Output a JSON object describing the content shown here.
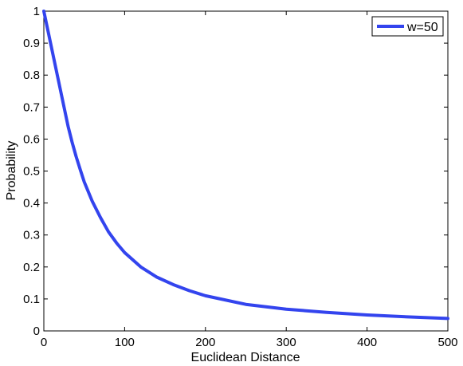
{
  "chart_data": {
    "type": "line",
    "title": "",
    "xlabel": "Euclidean Distance",
    "ylabel": "Probability",
    "xlim": [
      0,
      500
    ],
    "ylim": [
      0,
      1
    ],
    "xticks": [
      "0",
      "100",
      "200",
      "300",
      "400",
      "500"
    ],
    "yticks": [
      "0",
      "0.1",
      "0.2",
      "0.3",
      "0.4",
      "0.5",
      "0.6",
      "0.7",
      "0.8",
      "0.9",
      "1"
    ],
    "grid": false,
    "legend": "top-right",
    "series": [
      {
        "name": "w=50",
        "color": "#3344ee",
        "x": [
          0,
          5,
          10,
          15,
          20,
          25,
          30,
          35,
          40,
          45,
          50,
          60,
          70,
          80,
          90,
          100,
          120,
          140,
          160,
          180,
          200,
          250,
          300,
          350,
          400,
          450,
          500
        ],
        "y": [
          1.0,
          0.94,
          0.88,
          0.82,
          0.76,
          0.7,
          0.64,
          0.59,
          0.545,
          0.505,
          0.466,
          0.405,
          0.355,
          0.31,
          0.275,
          0.245,
          0.2,
          0.168,
          0.145,
          0.126,
          0.11,
          0.083,
          0.068,
          0.058,
          0.05,
          0.044,
          0.039
        ]
      }
    ]
  }
}
